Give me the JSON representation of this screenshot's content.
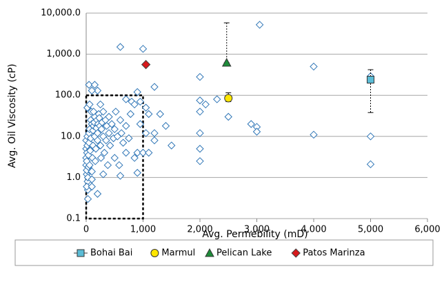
{
  "chart_data": {
    "type": "scatter",
    "x_label": "Avg. Permebility (mD)",
    "y_label": "Avg. Oil Viscosity (cP)",
    "xlim": [
      0,
      6000
    ],
    "xticks": [
      0,
      {
        "value": 1000,
        "label": "1,000"
      },
      {
        "value": 2000,
        "label": "2,000"
      },
      {
        "value": 3000,
        "label": "3,000"
      },
      {
        "value": 4000,
        "label": "4,000"
      },
      {
        "value": 5000,
        "label": "5,000"
      },
      {
        "value": 6000,
        "label": "6,000"
      }
    ],
    "ylim": [
      0.1,
      10000
    ],
    "yticks": [
      0.1,
      {
        "value": 1,
        "label": "1.0"
      },
      {
        "value": 10,
        "label": "10.0"
      },
      {
        "value": 100,
        "label": "100.0"
      },
      {
        "value": 1000,
        "label": "1,000.0"
      },
      {
        "value": 10000,
        "label": "10,000.0"
      }
    ],
    "y_log": true,
    "grid": true,
    "legend": "bottom",
    "highlight_box": {
      "x": [
        0,
        1000
      ],
      "y": [
        0.1,
        100
      ]
    },
    "series": [
      {
        "color": "#2e75b6",
        "marker": "diamond",
        "x": [
          0,
          0,
          0,
          0,
          10,
          10,
          10,
          15,
          20,
          20,
          25,
          30,
          30,
          30,
          40,
          40,
          50,
          50,
          60,
          60,
          70,
          80,
          80,
          90,
          100,
          100,
          110,
          120,
          120,
          130,
          140,
          150,
          150,
          160,
          170,
          180,
          190,
          200,
          200,
          210,
          220,
          230,
          240,
          250,
          260,
          270,
          280,
          300,
          300,
          320,
          340,
          350,
          360,
          380,
          400,
          400,
          420,
          450,
          480,
          500,
          500,
          520,
          550,
          580,
          600,
          620,
          650,
          700,
          750,
          780,
          850,
          950,
          1050,
          20,
          60,
          130,
          250,
          10,
          100,
          300,
          600,
          1000,
          3050,
          4000,
          5000,
          5000,
          5000,
          4000,
          2000,
          2000,
          2000,
          2000,
          2000,
          2000,
          2100,
          2300,
          2500,
          2900,
          3000,
          3000,
          1200,
          1200,
          1200,
          1400,
          1500,
          1300,
          1100,
          1050,
          900,
          950,
          800,
          700,
          850,
          900,
          1000,
          1100,
          900,
          600,
          700,
          200,
          100,
          50,
          150,
          200,
          100
        ],
        "values": [
          2,
          3,
          5,
          8,
          1.2,
          1.5,
          2.5,
          4,
          6,
          10,
          0.8,
          0.5,
          0.3,
          1,
          1.8,
          3.5,
          7,
          12,
          15,
          2,
          4.5,
          9,
          25,
          40,
          20,
          1.4,
          3,
          6,
          14,
          18,
          22,
          30,
          10,
          2.5,
          5,
          16,
          25,
          12,
          8,
          20,
          35,
          28,
          18,
          6,
          3,
          15,
          22,
          40,
          10,
          4,
          25,
          8,
          18,
          2,
          12,
          30,
          6,
          20,
          9,
          3,
          15,
          40,
          10,
          2,
          25,
          12,
          7,
          18,
          9,
          35,
          3,
          20,
          12,
          50,
          60,
          40,
          60,
          0.6,
          0.9,
          1.2,
          1500,
          1350,
          5200,
          500,
          290,
          10,
          2.1,
          11,
          280,
          75,
          40,
          12,
          5,
          2.5,
          60,
          80,
          30,
          20,
          17,
          13,
          160,
          12,
          8,
          18,
          6,
          35,
          35,
          50,
          120,
          70,
          70,
          80,
          60,
          4,
          4,
          4,
          1.3,
          1.1,
          4,
          0.4,
          0.6,
          180,
          180,
          130,
          130
        ]
      },
      {
        "name": "Bohai Bai",
        "color": "#5bbcd6",
        "marker": "square",
        "legend_line": true,
        "x": [
          5000
        ],
        "values": [
          240
        ],
        "error_low": [
          38
        ],
        "error_high": [
          420
        ]
      },
      {
        "name": "Marmul",
        "color": "#ffe600",
        "marker": "circle",
        "x": [
          2500
        ],
        "values": [
          85
        ],
        "error_low": [
          70
        ],
        "error_high": [
          115
        ]
      },
      {
        "name": "Pelican Lake",
        "color": "#1e8c3a",
        "marker": "triangle",
        "x": [
          2470
        ],
        "values": [
          620
        ],
        "error_low": [
          620
        ],
        "error_high": [
          5800
        ]
      },
      {
        "name": "Patos Marinza",
        "color": "#d7191c",
        "marker": "diamond-filled",
        "x": [
          1050
        ],
        "values": [
          560
        ]
      }
    ]
  }
}
